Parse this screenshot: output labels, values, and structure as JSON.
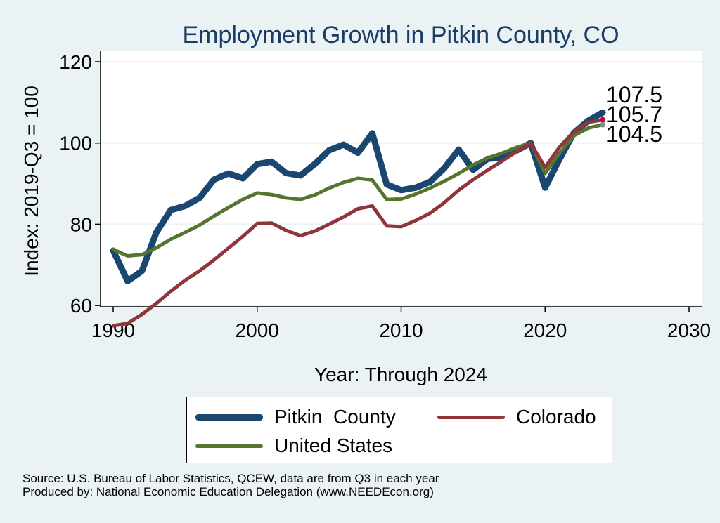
{
  "chart_data": {
    "type": "line",
    "title": "Employment Growth in Pitkin County, CO",
    "xlabel": "Year: Through 2024",
    "ylabel": "Index: 2019-Q3 = 100",
    "xlim": [
      1990,
      2030
    ],
    "ylim": [
      50,
      122
    ],
    "xticks": [
      1990,
      2000,
      2010,
      2020,
      2030
    ],
    "yticks": [
      60,
      80,
      100,
      120
    ],
    "grid": true,
    "legend_position": "bottom",
    "x": [
      1990,
      1991,
      1992,
      1993,
      1994,
      1995,
      1996,
      1997,
      1998,
      1999,
      2000,
      2001,
      2002,
      2003,
      2004,
      2005,
      2006,
      2007,
      2008,
      2009,
      2010,
      2011,
      2012,
      2013,
      2014,
      2015,
      2016,
      2017,
      2018,
      2019,
      2020,
      2021,
      2022,
      2023,
      2024
    ],
    "series": [
      {
        "name": "Pitkin  County",
        "color": "#1a476f",
        "end_label": "107.5",
        "values": [
          73.5,
          66,
          68.5,
          78,
          83.5,
          84.5,
          86.5,
          91,
          92.5,
          91.3,
          94.8,
          95.4,
          92.6,
          92,
          94.8,
          98.2,
          99.6,
          97.6,
          102.4,
          89.8,
          88.4,
          89,
          90.4,
          93.8,
          98.4,
          93.4,
          96.1,
          96.4,
          98.1,
          100,
          89,
          96,
          102.5,
          105.5,
          107.5
        ]
      },
      {
        "name": "Colorado",
        "color": "#90353b",
        "end_label": "105.7",
        "values": [
          55,
          55.6,
          57.8,
          60.5,
          63.5,
          66.2,
          68.5,
          71.2,
          74.1,
          77,
          80.2,
          80.3,
          78.5,
          77.2,
          78.3,
          80,
          81.8,
          83.8,
          84.5,
          79.6,
          79.4,
          80.9,
          82.7,
          85.3,
          88.4,
          91,
          93.3,
          95.5,
          97.9,
          99.9,
          94,
          99,
          102.8,
          105.1,
          105.7
        ]
      },
      {
        "name": "United States",
        "color": "#55752f",
        "end_label": "104.5",
        "values": [
          73.8,
          72.2,
          72.5,
          74.2,
          76.3,
          78,
          79.8,
          82,
          84.1,
          86.1,
          87.7,
          87.3,
          86.5,
          86.1,
          87.2,
          88.9,
          90.3,
          91.3,
          90.9,
          86.1,
          86.2,
          87.4,
          88.9,
          90.6,
          92.5,
          94.6,
          96.3,
          97.5,
          98.9,
          100,
          92.5,
          97.5,
          101.8,
          103.7,
          104.5
        ]
      }
    ]
  },
  "legend": {
    "pitkin": "Pitkin  County",
    "colorado": "Colorado",
    "us": "United States"
  },
  "source_lines": {
    "line1": "Source: U.S. Bureau of Labor Statistics, QCEW, data are from Q3 in each year",
    "line2": "Produced by: National Economic Education Delegation (www.NEEDEcon.org)"
  }
}
